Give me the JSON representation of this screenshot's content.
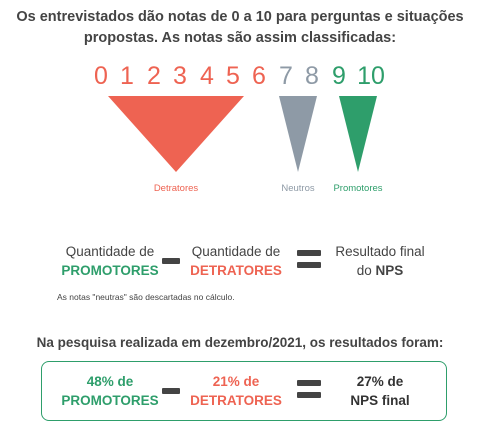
{
  "intro": {
    "line1": "Os entrevistados dão notas de 0 a 10 para perguntas e situações",
    "line2": "propostas. As notas são assim classificadas:"
  },
  "scale": [
    "0",
    "1",
    "2",
    "3",
    "4",
    "5",
    "6",
    "7",
    "8",
    "9",
    "10"
  ],
  "categories": {
    "detratores": "Detratores",
    "neutros": "Neutros",
    "promotores": "Promotores"
  },
  "formula": {
    "promoters_line1": "Quantidade de",
    "promoters_line2": "PROMOTORES",
    "detractors_line1": "Quantidade de",
    "detractors_line2": "DETRATORES",
    "result_line1": "Resultado final",
    "result_line2_prefix": "do ",
    "result_line2_bold": "NPS",
    "note": "As notas \"neutras\" são descartadas no cálculo."
  },
  "results": {
    "title": "Na pesquisa realizada em dezembro/2021, os resultados foram:",
    "promoters_line1": "48% de",
    "promoters_line2": "PROMOTORES",
    "detractors_line1": "21% de",
    "detractors_line2": "DETRATORES",
    "nps_line1": "27% de",
    "nps_line2": "NPS final"
  },
  "colors": {
    "detratores": "#ee6352",
    "neutros": "#8e9aa6",
    "promotores": "#2e9e6b"
  }
}
